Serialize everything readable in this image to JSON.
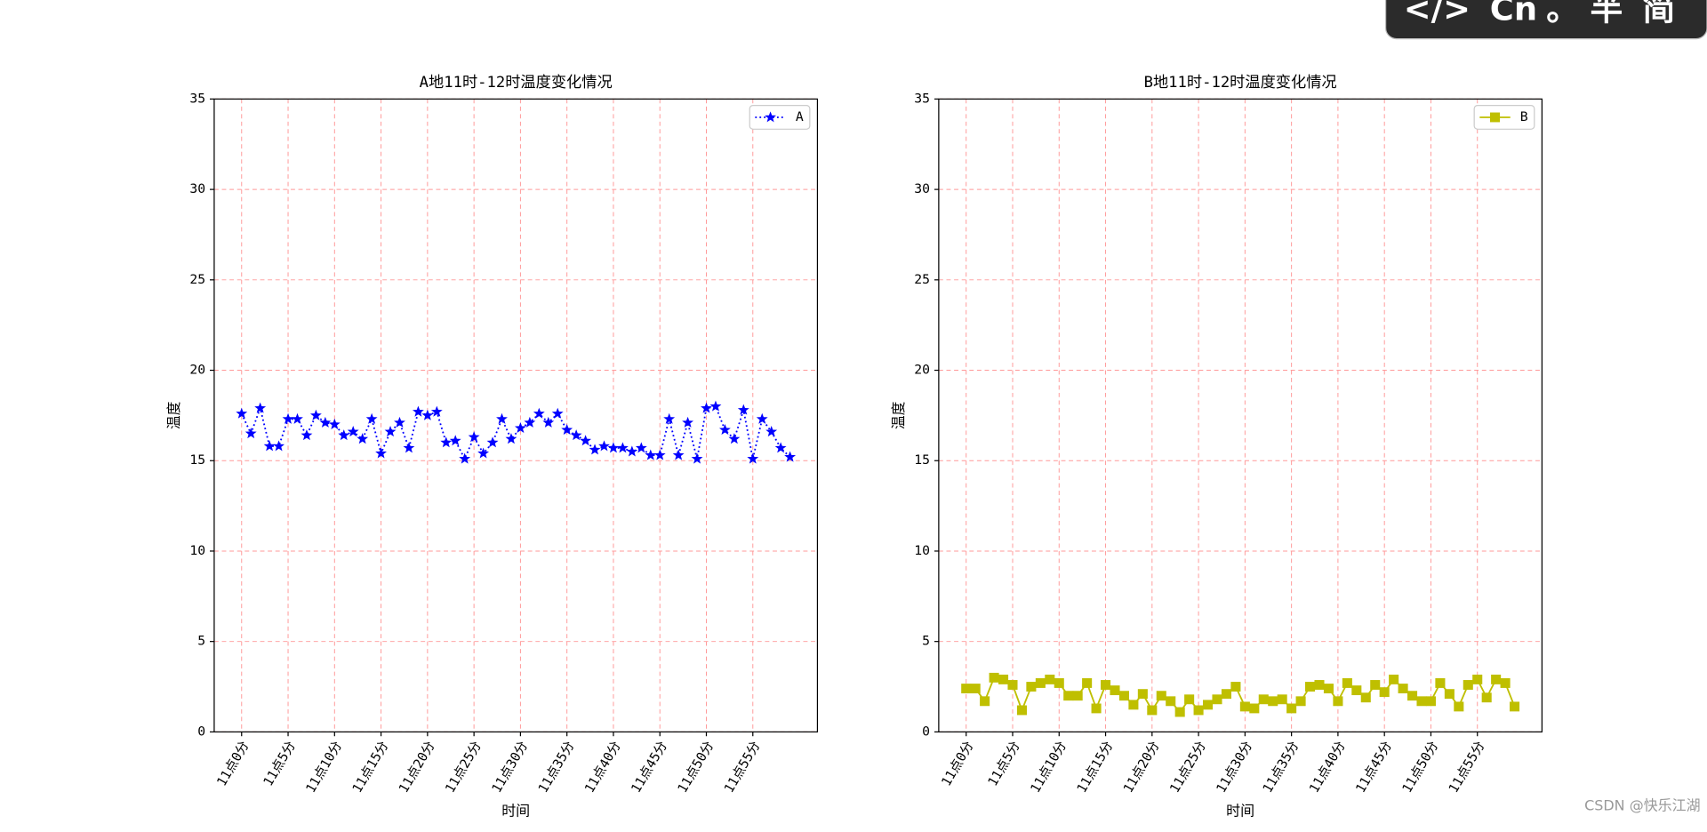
{
  "chart_data": [
    {
      "type": "line",
      "title": "A地11时-12时温度变化情况",
      "xlabel": "时间",
      "ylabel": "温度",
      "categories": [
        "11点0分",
        null,
        null,
        null,
        null,
        "11点5分",
        null,
        null,
        null,
        null,
        "11点10分",
        null,
        null,
        null,
        null,
        "11点15分",
        null,
        null,
        null,
        null,
        "11点20分",
        null,
        null,
        null,
        null,
        "11点25分",
        null,
        null,
        null,
        null,
        "11点30分",
        null,
        null,
        null,
        null,
        "11点35分",
        null,
        null,
        null,
        null,
        "11点40分",
        null,
        null,
        null,
        null,
        "11点45分",
        null,
        null,
        null,
        null,
        "11点50分",
        null,
        null,
        null,
        null,
        "11点55分",
        null,
        null,
        null,
        null
      ],
      "series": [
        {
          "name": "A",
          "color": "#0000ff",
          "marker": "star",
          "linestyle": "dotted",
          "values": [
            17.6,
            16.5,
            17.9,
            15.8,
            15.8,
            17.3,
            17.3,
            16.4,
            17.5,
            17.1,
            17.0,
            16.4,
            16.6,
            16.2,
            17.3,
            15.4,
            16.6,
            17.1,
            15.7,
            17.7,
            17.5,
            17.7,
            16.0,
            16.1,
            15.1,
            16.3,
            15.4,
            16.0,
            17.3,
            16.2,
            16.8,
            17.1,
            17.6,
            17.1,
            17.6,
            16.7,
            16.4,
            16.1,
            15.6,
            15.8,
            15.7,
            15.7,
            15.5,
            15.7,
            15.3,
            15.3,
            17.3,
            15.3,
            17.1,
            15.1,
            17.9,
            18.0,
            16.7,
            16.2,
            17.8,
            15.1,
            17.3,
            16.6,
            15.7,
            15.2
          ]
        }
      ],
      "ylim": [
        0,
        35
      ],
      "yticks": [
        0,
        5,
        10,
        15,
        20,
        25,
        30,
        35
      ],
      "grid": true,
      "grid_color": "#ff9999",
      "legend": "upper right"
    },
    {
      "type": "line",
      "title": "B地11时-12时温度变化情况",
      "xlabel": "时间",
      "ylabel": "温度",
      "categories": [
        "11点0分",
        null,
        null,
        null,
        null,
        "11点5分",
        null,
        null,
        null,
        null,
        "11点10分",
        null,
        null,
        null,
        null,
        "11点15分",
        null,
        null,
        null,
        null,
        "11点20分",
        null,
        null,
        null,
        null,
        "11点25分",
        null,
        null,
        null,
        null,
        "11点30分",
        null,
        null,
        null,
        null,
        "11点35分",
        null,
        null,
        null,
        null,
        "11点40分",
        null,
        null,
        null,
        null,
        "11点45分",
        null,
        null,
        null,
        null,
        "11点50分",
        null,
        null,
        null,
        null,
        "11点55分",
        null,
        null,
        null,
        null
      ],
      "series": [
        {
          "name": "B",
          "color": "#bfbf00",
          "marker": "square",
          "linestyle": "solid",
          "values": [
            2.4,
            2.4,
            1.7,
            3.0,
            2.9,
            2.6,
            1.2,
            2.5,
            2.7,
            2.9,
            2.7,
            2.0,
            2.0,
            2.7,
            1.3,
            2.6,
            2.3,
            2.0,
            1.5,
            2.1,
            1.2,
            2.0,
            1.7,
            1.1,
            1.8,
            1.2,
            1.5,
            1.8,
            2.1,
            2.5,
            1.4,
            1.3,
            1.8,
            1.7,
            1.8,
            1.3,
            1.7,
            2.5,
            2.6,
            2.4,
            1.7,
            2.7,
            2.3,
            1.9,
            2.6,
            2.2,
            2.9,
            2.4,
            2.0,
            1.7,
            1.7,
            2.7,
            2.1,
            1.4,
            2.6,
            2.9,
            1.9,
            2.9,
            2.7,
            1.4
          ]
        }
      ],
      "ylim": [
        0,
        35
      ],
      "yticks": [
        0,
        5,
        10,
        15,
        20,
        25,
        30,
        35
      ],
      "grid": true,
      "grid_color": "#ff9999",
      "legend": "upper right"
    }
  ],
  "toolbar": {
    "items": [
      "</>",
      "Cn",
      "。",
      "半",
      "简"
    ]
  },
  "watermark": "CSDN @快乐江湖"
}
